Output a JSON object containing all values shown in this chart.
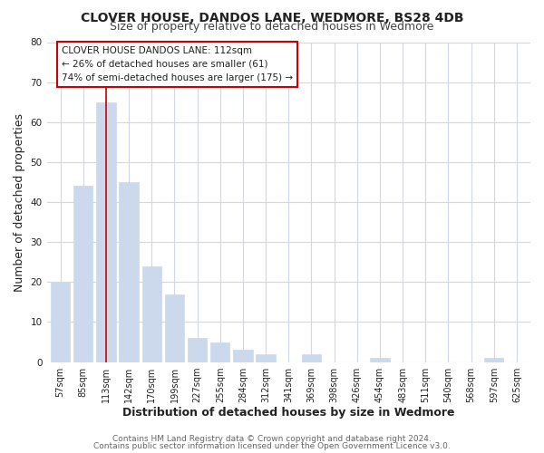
{
  "title": "CLOVER HOUSE, DANDOS LANE, WEDMORE, BS28 4DB",
  "subtitle": "Size of property relative to detached houses in Wedmore",
  "xlabel": "Distribution of detached houses by size in Wedmore",
  "ylabel": "Number of detached properties",
  "bar_labels": [
    "57sqm",
    "85sqm",
    "113sqm",
    "142sqm",
    "170sqm",
    "199sqm",
    "227sqm",
    "255sqm",
    "284sqm",
    "312sqm",
    "341sqm",
    "369sqm",
    "398sqm",
    "426sqm",
    "454sqm",
    "483sqm",
    "511sqm",
    "540sqm",
    "568sqm",
    "597sqm",
    "625sqm"
  ],
  "bar_values": [
    20,
    44,
    65,
    45,
    24,
    17,
    6,
    5,
    3,
    2,
    0,
    2,
    0,
    0,
    1,
    0,
    0,
    0,
    0,
    1,
    0
  ],
  "bar_color": "#ccd9ed",
  "highlight_bar_index": 2,
  "highlight_line_color": "#cc0000",
  "ylim": [
    0,
    80
  ],
  "yticks": [
    0,
    10,
    20,
    30,
    40,
    50,
    60,
    70,
    80
  ],
  "annotation_title": "CLOVER HOUSE DANDOS LANE: 112sqm",
  "annotation_line1": "← 26% of detached houses are smaller (61)",
  "annotation_line2": "74% of semi-detached houses are larger (175) →",
  "annotation_box_color": "#ffffff",
  "annotation_box_edge": "#cc0000",
  "footer_line1": "Contains HM Land Registry data © Crown copyright and database right 2024.",
  "footer_line2": "Contains public sector information licensed under the Open Government Licence v3.0.",
  "plot_bg_color": "#ffffff",
  "fig_bg_color": "#ffffff",
  "grid_color": "#d0d8e8",
  "title_fontsize": 10,
  "subtitle_fontsize": 9,
  "axis_label_fontsize": 9,
  "tick_fontsize": 7,
  "annotation_fontsize": 7.5,
  "footer_fontsize": 6.5
}
